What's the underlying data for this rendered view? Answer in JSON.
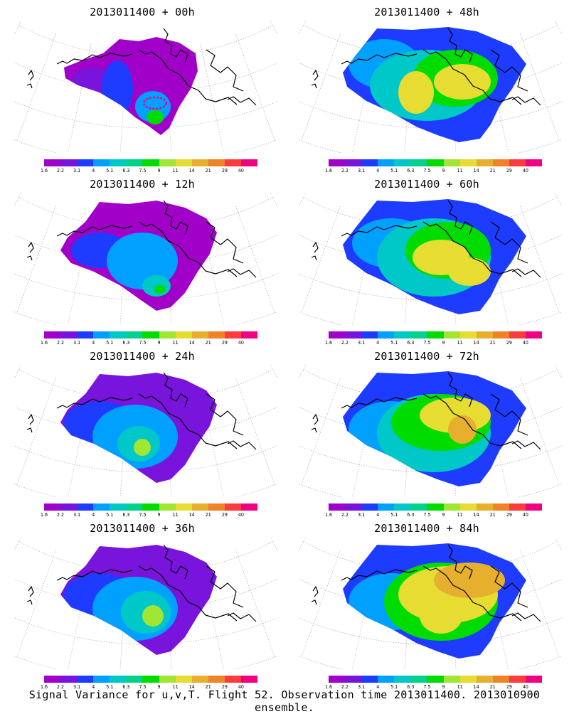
{
  "panels": [
    {
      "title": "2013011400 + 00h"
    },
    {
      "title": "2013011400 + 48h"
    },
    {
      "title": "2013011400 + 12h"
    },
    {
      "title": "2013011400 + 60h"
    },
    {
      "title": "2013011400 + 24h"
    },
    {
      "title": "2013011400 + 72h"
    },
    {
      "title": "2013011400 + 36h"
    },
    {
      "title": "2013011400 + 84h"
    }
  ],
  "colorbar": {
    "labels": [
      "1.6",
      "2.2",
      "3.1",
      "4",
      "5.1",
      "6.3",
      "7.5",
      "9",
      "11",
      "14",
      "21",
      "29",
      "40"
    ],
    "colors": [
      "#a000c8",
      "#7814dc",
      "#1e3cff",
      "#00a0ff",
      "#00c8c8",
      "#00d28c",
      "#00dc00",
      "#a0e632",
      "#e6dc32",
      "#e6af2d",
      "#f08228",
      "#fa3c3c",
      "#f00082"
    ]
  },
  "footer": "Signal Variance for u,v,T. Flight 52. Observation time 2013011400. 2013010900 ensemble."
}
